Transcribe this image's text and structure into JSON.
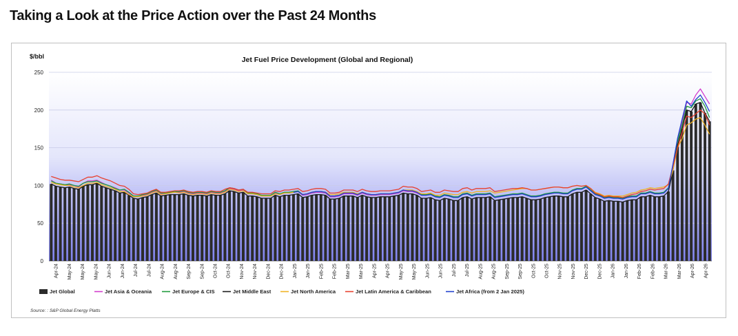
{
  "page": {
    "title": "Taking a Look at the Price Action over the Past 24 Months"
  },
  "chart_data": {
    "type": "bar",
    "title": "Jet Fuel Price Development (Global and Regional)",
    "ylabel": "$/bbl",
    "xlabel": "",
    "ylim": [
      0,
      250
    ],
    "yticks": [
      0,
      50,
      100,
      150,
      200,
      250
    ],
    "grid": true,
    "legend_position": "bottom",
    "source": "Source: : S&P Global Energy Platts",
    "x_tick_labels": [
      "Apr-24",
      "May-24",
      "May-24",
      "May-24",
      "Jun-24",
      "Jun-24",
      "Jul-24",
      "Jul-24",
      "Aug-24",
      "Aug-24",
      "Sep-24",
      "Sep-24",
      "Oct-24",
      "Oct-24",
      "Nov-24",
      "Nov-24",
      "Dec-24",
      "Dec-24",
      "Jan-25",
      "Jan-25",
      "Feb-25",
      "Feb-25",
      "Mar-25",
      "Mar-25",
      "Apr-25",
      "Apr-25",
      "May-25",
      "May-25",
      "Jun-25",
      "Jun-25",
      "Jul-25",
      "Jul-25",
      "Aug-25",
      "Aug-25",
      "Sep-25",
      "Sep-25",
      "Oct-25",
      "Oct-25",
      "Nov-25",
      "Nov-25",
      "Dec-25",
      "Dec-25",
      "Jan-26",
      "Jan-26",
      "Feb-26",
      "Feb-26",
      "Mar-26",
      "Mar-26",
      "Apr-26",
      "Apr-26"
    ],
    "series": [
      {
        "name": "Jet Global",
        "kind": "bar",
        "color": "#2b2b2b",
        "values": [
          102,
          99,
          98,
          97,
          98,
          96,
          95,
          99,
          101,
          101,
          103,
          99,
          97,
          95,
          93,
          90,
          91,
          87,
          83,
          82,
          84,
          85,
          88,
          90,
          86,
          87,
          88,
          88,
          88,
          89,
          87,
          86,
          87,
          87,
          86,
          88,
          87,
          87,
          89,
          93,
          92,
          90,
          91,
          86,
          86,
          85,
          83,
          83,
          83,
          87,
          85,
          87,
          87,
          88,
          89,
          84,
          85,
          87,
          88,
          88,
          87,
          82,
          82,
          83,
          86,
          86,
          86,
          84,
          87,
          85,
          84,
          84,
          85,
          85,
          85,
          86,
          87,
          90,
          89,
          89,
          87,
          83,
          83,
          84,
          81,
          80,
          83,
          82,
          80,
          80,
          84,
          85,
          82,
          84,
          84,
          84,
          85,
          80,
          81,
          82,
          83,
          84,
          84,
          85,
          83,
          81,
          81,
          82,
          84,
          85,
          86,
          86,
          85,
          85,
          89,
          91,
          91,
          94,
          89,
          84,
          82,
          79,
          80,
          79,
          79,
          78,
          80,
          81,
          81,
          85,
          85,
          87,
          85,
          85,
          86,
          92,
          120,
          153,
          175,
          200,
          198,
          208,
          210,
          196,
          185
        ]
      },
      {
        "name": "Jet Asia & Oceania",
        "kind": "line",
        "color": "#d23ccd",
        "values": [
          107,
          103,
          102,
          101,
          101,
          100,
          98,
          103,
          106,
          106,
          107,
          104,
          101,
          99,
          97,
          94,
          94,
          90,
          85,
          85,
          87,
          88,
          91,
          93,
          89,
          89,
          90,
          91,
          91,
          92,
          90,
          89,
          90,
          90,
          89,
          91,
          90,
          90,
          92,
          96,
          95,
          93,
          94,
          89,
          89,
          88,
          86,
          86,
          86,
          90,
          88,
          90,
          90,
          91,
          92,
          87,
          88,
          90,
          91,
          91,
          90,
          85,
          85,
          86,
          89,
          89,
          89,
          87,
          90,
          88,
          87,
          87,
          88,
          88,
          88,
          89,
          90,
          93,
          92,
          92,
          90,
          87,
          87,
          88,
          85,
          84,
          87,
          86,
          84,
          84,
          88,
          89,
          86,
          88,
          88,
          88,
          89,
          84,
          85,
          86,
          87,
          88,
          88,
          89,
          87,
          85,
          85,
          86,
          88,
          89,
          90,
          90,
          89,
          89,
          93,
          95,
          95,
          98,
          93,
          88,
          86,
          83,
          84,
          83,
          83,
          82,
          84,
          85,
          85,
          89,
          89,
          91,
          89,
          89,
          90,
          96,
          128,
          160,
          185,
          210,
          208,
          220,
          228,
          218,
          208
        ]
      },
      {
        "name": "Jet Europe & CIS",
        "kind": "line",
        "color": "#1e9a3c",
        "values": [
          106,
          103,
          102,
          101,
          102,
          100,
          99,
          103,
          105,
          105,
          106,
          103,
          101,
          99,
          96,
          94,
          95,
          91,
          86,
          86,
          88,
          89,
          92,
          94,
          90,
          90,
          91,
          92,
          92,
          93,
          91,
          90,
          91,
          91,
          90,
          92,
          91,
          91,
          93,
          97,
          96,
          94,
          95,
          90,
          90,
          89,
          87,
          87,
          87,
          91,
          89,
          91,
          91,
          92,
          93,
          88,
          89,
          91,
          92,
          92,
          91,
          86,
          86,
          87,
          90,
          90,
          90,
          88,
          91,
          89,
          88,
          88,
          89,
          89,
          89,
          90,
          91,
          94,
          93,
          93,
          91,
          88,
          88,
          89,
          86,
          85,
          88,
          87,
          85,
          85,
          89,
          90,
          87,
          89,
          89,
          89,
          90,
          85,
          86,
          87,
          88,
          89,
          89,
          90,
          88,
          86,
          86,
          87,
          89,
          90,
          91,
          91,
          90,
          90,
          94,
          96,
          96,
          99,
          94,
          89,
          87,
          84,
          85,
          84,
          84,
          83,
          85,
          86,
          86,
          90,
          90,
          92,
          90,
          90,
          91,
          97,
          127,
          158,
          180,
          205,
          203,
          212,
          215,
          205,
          190
        ]
      },
      {
        "name": "Jet Middle East",
        "kind": "line",
        "color": "#1a1a1a",
        "values": [
          102,
          99,
          98,
          97,
          98,
          96,
          95,
          99,
          101,
          101,
          103,
          99,
          97,
          95,
          93,
          90,
          91,
          87,
          83,
          82,
          84,
          85,
          88,
          90,
          86,
          87,
          88,
          88,
          88,
          89,
          87,
          86,
          87,
          87,
          86,
          88,
          87,
          87,
          89,
          93,
          92,
          90,
          91,
          86,
          86,
          85,
          83,
          83,
          83,
          87,
          85,
          87,
          87,
          88,
          89,
          84,
          85,
          87,
          88,
          88,
          87,
          82,
          82,
          83,
          86,
          86,
          86,
          84,
          87,
          85,
          84,
          84,
          85,
          85,
          85,
          86,
          87,
          90,
          89,
          89,
          87,
          83,
          83,
          84,
          81,
          80,
          83,
          82,
          80,
          80,
          84,
          85,
          82,
          84,
          84,
          84,
          85,
          80,
          81,
          82,
          83,
          84,
          84,
          85,
          83,
          81,
          81,
          82,
          84,
          85,
          86,
          86,
          85,
          85,
          89,
          91,
          91,
          94,
          89,
          84,
          82,
          79,
          80,
          79,
          79,
          78,
          80,
          81,
          81,
          85,
          85,
          87,
          85,
          85,
          86,
          92,
          120,
          153,
          175,
          200,
          198,
          208,
          210,
          196,
          185
        ]
      },
      {
        "name": "Jet North America",
        "kind": "line",
        "color": "#f0b323",
        "values": [
          104,
          102,
          101,
          100,
          100,
          98,
          97,
          100,
          103,
          103,
          104,
          101,
          99,
          97,
          95,
          92,
          92,
          88,
          85,
          85,
          86,
          87,
          90,
          92,
          88,
          89,
          90,
          91,
          90,
          91,
          89,
          88,
          89,
          89,
          88,
          90,
          89,
          89,
          91,
          95,
          94,
          92,
          93,
          89,
          89,
          88,
          86,
          86,
          86,
          89,
          88,
          90,
          90,
          91,
          92,
          88,
          89,
          91,
          92,
          92,
          91,
          88,
          88,
          89,
          91,
          91,
          91,
          89,
          91,
          89,
          88,
          88,
          89,
          89,
          89,
          90,
          91,
          94,
          94,
          94,
          92,
          89,
          89,
          90,
          87,
          87,
          90,
          89,
          88,
          88,
          91,
          92,
          90,
          92,
          92,
          92,
          93,
          90,
          91,
          92,
          93,
          94,
          95,
          96,
          96,
          94,
          94,
          95,
          96,
          97,
          98,
          98,
          97,
          97,
          99,
          100,
          99,
          100,
          96,
          91,
          89,
          86,
          87,
          86,
          86,
          86,
          88,
          90,
          91,
          94,
          95,
          97,
          96,
          97,
          98,
          101,
          120,
          150,
          162,
          180,
          183,
          188,
          190,
          180,
          168
        ]
      },
      {
        "name": "Jet Latin America & Caribbean",
        "kind": "line",
        "color": "#e8402e",
        "values": [
          112,
          110,
          108,
          107,
          107,
          106,
          105,
          108,
          111,
          111,
          113,
          110,
          108,
          106,
          103,
          100,
          99,
          95,
          89,
          88,
          89,
          90,
          93,
          95,
          91,
          91,
          92,
          93,
          93,
          94,
          92,
          91,
          92,
          92,
          91,
          93,
          92,
          92,
          95,
          97,
          96,
          94,
          95,
          91,
          91,
          90,
          89,
          89,
          89,
          93,
          92,
          94,
          94,
          95,
          96,
          92,
          93,
          95,
          96,
          96,
          95,
          90,
          90,
          91,
          94,
          94,
          94,
          92,
          95,
          93,
          92,
          92,
          93,
          93,
          93,
          94,
          95,
          99,
          98,
          98,
          96,
          92,
          93,
          94,
          91,
          91,
          94,
          93,
          92,
          92,
          96,
          97,
          94,
          96,
          96,
          96,
          97,
          92,
          93,
          94,
          95,
          96,
          96,
          97,
          96,
          94,
          94,
          95,
          96,
          97,
          98,
          98,
          97,
          97,
          99,
          100,
          99,
          100,
          96,
          90,
          88,
          85,
          86,
          85,
          85,
          84,
          86,
          88,
          89,
          92,
          93,
          95,
          94,
          95,
          96,
          102,
          125,
          150,
          170,
          192,
          190,
          195,
          200,
          195,
          180
        ]
      },
      {
        "name": "Jet Africa (from 2 Jan 2025)",
        "kind": "line",
        "color": "#1f3fcf",
        "start_index": 53,
        "values": [
          null,
          null,
          null,
          null,
          null,
          null,
          null,
          null,
          null,
          null,
          null,
          null,
          null,
          null,
          null,
          null,
          null,
          null,
          null,
          null,
          null,
          null,
          null,
          null,
          null,
          null,
          null,
          null,
          null,
          null,
          null,
          null,
          null,
          null,
          null,
          null,
          null,
          null,
          null,
          null,
          null,
          null,
          null,
          null,
          null,
          null,
          null,
          null,
          null,
          null,
          null,
          null,
          null,
          91,
          92,
          88,
          89,
          91,
          92,
          92,
          91,
          86,
          86,
          87,
          90,
          90,
          90,
          88,
          91,
          89,
          88,
          88,
          89,
          89,
          89,
          90,
          91,
          94,
          93,
          93,
          91,
          87,
          87,
          88,
          85,
          84,
          87,
          86,
          84,
          84,
          88,
          89,
          86,
          88,
          88,
          88,
          89,
          84,
          85,
          86,
          87,
          88,
          88,
          89,
          87,
          85,
          85,
          86,
          88,
          89,
          90,
          90,
          89,
          89,
          93,
          95,
          95,
          98,
          93,
          88,
          86,
          83,
          84,
          83,
          83,
          82,
          84,
          85,
          85,
          89,
          89,
          91,
          89,
          89,
          90,
          96,
          128,
          162,
          188,
          212,
          205,
          214,
          220,
          210,
          198
        ]
      }
    ]
  }
}
